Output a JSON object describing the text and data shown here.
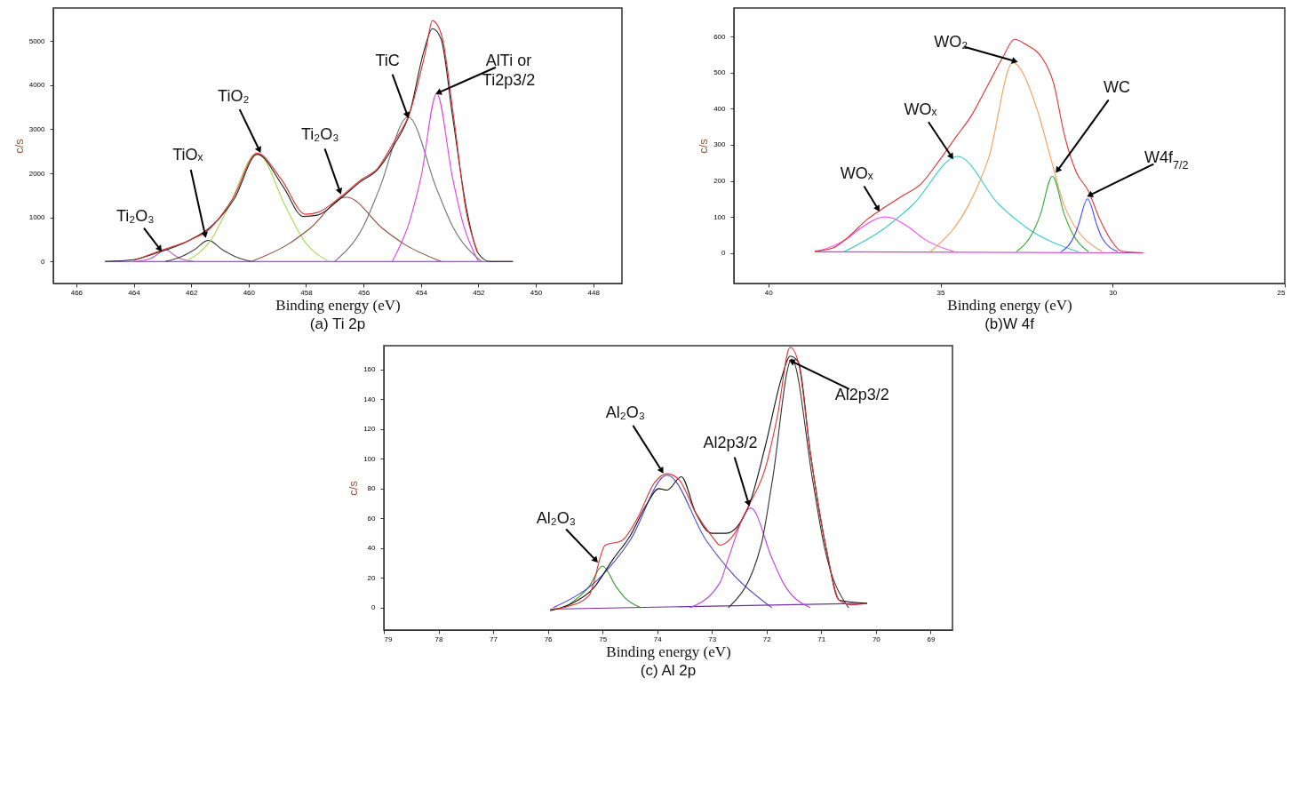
{
  "chart_data": [
    {
      "type": "line",
      "title": "(a)  Ti 2p",
      "xlabel": "Binding energy (eV)",
      "ylabel": "c/s",
      "xlim": [
        466.8,
        447
      ],
      "ylim": [
        -500,
        5750
      ],
      "xticks": [
        466,
        464,
        462,
        460,
        458,
        456,
        454,
        452,
        450,
        448
      ],
      "yticks": [
        0,
        1000,
        2000,
        3000,
        4000,
        5000
      ],
      "series": [
        {
          "color": "#7030b0",
          "x": [
            465,
            450.8
          ],
          "values": [
            0,
            0
          ]
        },
        {
          "color": "#c050c0",
          "x": [
            463.9,
            463.4,
            463.2,
            462.9,
            462.6,
            462.4,
            461.9
          ],
          "values": [
            0,
            70,
            150,
            270,
            150,
            70,
            0
          ]
        },
        {
          "color": "#404040",
          "x": [
            462.9,
            462.3,
            461.9,
            461.4,
            460.9,
            460.5,
            459.9
          ],
          "values": [
            0,
            120,
            260,
            480,
            260,
            120,
            0
          ]
        },
        {
          "color": "#a6d854",
          "x": [
            462.2,
            461.3,
            460.7,
            459.7,
            458.7,
            458.1,
            457.2
          ],
          "values": [
            0,
            500,
            1230,
            2460,
            1230,
            500,
            0
          ]
        },
        {
          "color": "#8b4a3a",
          "x": [
            459.9,
            458.6,
            457.9,
            456.6,
            455.3,
            454.6,
            453.3
          ],
          "values": [
            0,
            400,
            730,
            1460,
            730,
            400,
            0
          ]
        },
        {
          "color": "#707070",
          "x": [
            457.0,
            456.0,
            455.45,
            454.45,
            453.45,
            452.9,
            451.9
          ],
          "values": [
            0,
            800,
            1640,
            3280,
            1640,
            800,
            0
          ]
        },
        {
          "color": "#e040e0",
          "x": [
            455.0,
            454.4,
            454.0,
            453.45,
            452.9,
            452.55,
            452.0
          ],
          "values": [
            0,
            900,
            1900,
            3810,
            1900,
            900,
            0
          ]
        },
        {
          "color": "#222222",
          "x": [
            465,
            464,
            463.3,
            462,
            461.4,
            460.5,
            459.7,
            458.8,
            458.1,
            457.6,
            456.8,
            456.1,
            455.5,
            454.9,
            454.4,
            453.9,
            453.6,
            453.3,
            452.9,
            452.4,
            452,
            451.6,
            450.8
          ],
          "values": [
            0,
            40,
            170,
            500,
            740,
            1420,
            2430,
            1700,
            1020,
            1050,
            1430,
            1810,
            2090,
            2680,
            3350,
            4760,
            5280,
            5050,
            3300,
            1150,
            180,
            0,
            0
          ]
        },
        {
          "color": "#e03030",
          "x": [
            464,
            463.05,
            462.07,
            461.37,
            460.54,
            459.7,
            458.86,
            458.02,
            457.6,
            456.77,
            456.07,
            455.51,
            454.95,
            454.39,
            453.83,
            453.6,
            453.28,
            452.86,
            452.44,
            452.02
          ],
          "values": [
            20,
            250,
            480,
            730,
            1440,
            2460,
            1860,
            1070,
            1110,
            1480,
            1860,
            2110,
            2700,
            3370,
            4790,
            5460,
            5130,
            3280,
            1190,
            190
          ]
        }
      ],
      "annotations": [
        {
          "text": "Ti₂O₃",
          "x": 463.05,
          "y": 250
        },
        {
          "text": "TiOₓ",
          "x": 461.5,
          "y": 560
        },
        {
          "text": "TiO₂",
          "x": 459.6,
          "y": 2490
        },
        {
          "text": "Ti₂O₃",
          "x": 456.8,
          "y": 1550
        },
        {
          "text": "TiC",
          "x": 454.45,
          "y": 3280
        },
        {
          "text": "AlTi or\nTi2p3/2",
          "x": 453.45,
          "y": 3810
        }
      ]
    },
    {
      "type": "line",
      "title": "(b)W 4f",
      "xlabel": "Binding energy (eV)",
      "ylabel": "c/s",
      "xlim": [
        41,
        25
      ],
      "ylim": [
        -85,
        680
      ],
      "xticks": [
        40,
        35,
        30,
        25
      ],
      "yticks": [
        0,
        100,
        200,
        300,
        400,
        500,
        600
      ],
      "series": [
        {
          "color": "#cc44cc",
          "x": [
            38.65,
            29.1
          ],
          "values": [
            3,
            0
          ]
        },
        {
          "color": "#ff44ff",
          "x": [
            38.6,
            37.7,
            37.3,
            36.6,
            35.9,
            35.5,
            34.6
          ],
          "values": [
            3,
            40,
            70,
            100,
            70,
            40,
            3
          ]
        },
        {
          "color": "#33cccc",
          "x": [
            37.8,
            36.6,
            35.8,
            34.5,
            33.3,
            32.5,
            31.0
          ],
          "values": [
            3,
            70,
            134,
            268,
            134,
            70,
            3
          ]
        },
        {
          "color": "#f0a060",
          "x": [
            35.3,
            34.2,
            33.6,
            32.9,
            32.2,
            31.8,
            31.4,
            30.3
          ],
          "values": [
            3,
            130,
            264,
            528,
            400,
            264,
            130,
            3
          ]
        },
        {
          "color": "#33aa33",
          "x": [
            32.8,
            32.3,
            32.1,
            31.75,
            31.4,
            31.2,
            30.7
          ],
          "values": [
            3,
            60,
            106,
            213,
            106,
            60,
            3
          ]
        },
        {
          "color": "#4444ff",
          "x": [
            31.5,
            31.1,
            31.0,
            30.73,
            30.45,
            30.3,
            29.85
          ],
          "values": [
            3,
            50,
            75,
            150,
            75,
            40,
            3
          ]
        },
        {
          "color": "#e03030",
          "x": [
            38.65,
            38.14,
            37.69,
            37.13,
            36.68,
            36.11,
            35.55,
            35.1,
            34.54,
            34.09,
            33.64,
            33.19,
            32.85,
            32.51,
            32.06,
            31.72,
            31.39,
            31.05,
            30.71,
            30.37,
            30.03,
            29.75,
            29.13
          ],
          "values": [
            5,
            13,
            43,
            93,
            123,
            158,
            193,
            248,
            323,
            383,
            463,
            543,
            593,
            578,
            543,
            473,
            323,
            223,
            173,
            93,
            33,
            5,
            0
          ]
        }
      ],
      "annotations": [
        {
          "text": "WO₂",
          "x": 32.79,
          "y": 531
        },
        {
          "text": "WOₓ",
          "x": 34.65,
          "y": 263
        },
        {
          "text": "WOₓ",
          "x": 36.79,
          "y": 118
        },
        {
          "text": "WC",
          "x": 31.63,
          "y": 225
        },
        {
          "text": "W4f$_{7/2}$",
          "x": 30.71,
          "y": 158
        }
      ]
    },
    {
      "type": "line",
      "title": "(c) Al 2p",
      "xlabel": "Binding energy (eV)",
      "ylabel": "c/s",
      "xlim": [
        79,
        68.6
      ],
      "ylim": [
        -15,
        176
      ],
      "xticks": [
        79,
        78,
        77,
        76,
        75,
        74,
        73,
        72,
        71,
        70,
        69
      ],
      "yticks": [
        0,
        20,
        40,
        60,
        80,
        100,
        120,
        140,
        160
      ],
      "series": [
        {
          "color": "#7030a0",
          "x": [
            75.96,
            70.16
          ],
          "values": [
            -1,
            3
          ]
        },
        {
          "color": "#339933",
          "x": [
            75.7,
            75.35,
            75.25,
            75.0,
            74.75,
            74.6,
            74.3
          ],
          "values": [
            0,
            10,
            14,
            28,
            14,
            7,
            0
          ]
        },
        {
          "color": "#4444cc",
          "x": [
            75.9,
            75.0,
            74.5,
            73.82,
            73.1,
            72.6,
            71.9
          ],
          "values": [
            0,
            22,
            45,
            89,
            45,
            22,
            0
          ]
        },
        {
          "color": "#bb44dd",
          "x": [
            73.4,
            72.85,
            72.7,
            72.29,
            71.9,
            71.7,
            71.2
          ],
          "values": [
            0,
            17,
            33,
            67,
            33,
            17,
            0
          ]
        },
        {
          "color": "#333333",
          "x": [
            72.7,
            72.1,
            71.9,
            71.54,
            71.15,
            70.95,
            70.5
          ],
          "values": [
            0,
            42,
            84,
            167,
            84,
            42,
            0
          ]
        },
        {
          "color": "#111111",
          "x": [
            75.96,
            75.55,
            75.17,
            74.8,
            74.5,
            74.2,
            73.97,
            73.82,
            73.56,
            73.3,
            73.0,
            72.74,
            72.32,
            72.02,
            71.72,
            71.57,
            71.42,
            71.2,
            70.9,
            70.67,
            70.16
          ],
          "values": [
            -2,
            3,
            13,
            33,
            48,
            69,
            80,
            79,
            88,
            64,
            50,
            50,
            69,
            109,
            155,
            169,
            165,
            104,
            38,
            5,
            3
          ]
        },
        {
          "color": "#e03030",
          "x": [
            75.96,
            75.62,
            75.25,
            74.95,
            74.65,
            74.35,
            74.05,
            73.82,
            73.6,
            73.3,
            73.0,
            72.85,
            72.62,
            72.32,
            72.02,
            71.8,
            71.57,
            71.42,
            71.2,
            70.9,
            70.67,
            70.45,
            70.16
          ],
          "values": [
            -1,
            1,
            8,
            42,
            45,
            61,
            84,
            90,
            86,
            64,
            48,
            42,
            48,
            69,
            94,
            129,
            175,
            165,
            104,
            38,
            5,
            2,
            3
          ]
        }
      ],
      "annotations": [
        {
          "text": "Al₂O₃",
          "x": 75.1,
          "y": 31
        },
        {
          "text": "Al₂O₃",
          "x": 73.9,
          "y": 91
        },
        {
          "text": "Al2p3/2",
          "x": 72.32,
          "y": 69
        },
        {
          "text": "Al2p3/2",
          "x": 71.57,
          "y": 166
        }
      ]
    }
  ]
}
